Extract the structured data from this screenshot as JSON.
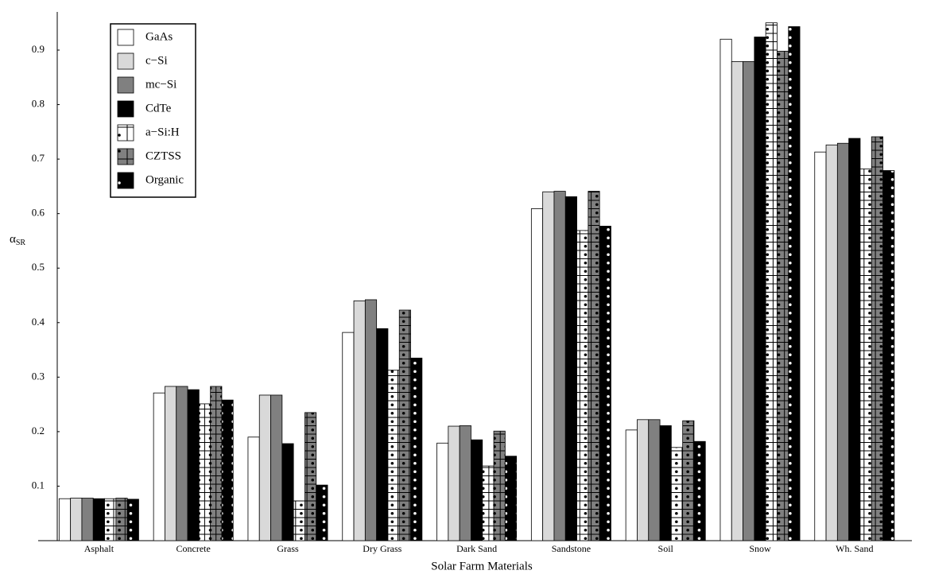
{
  "chart_data": {
    "type": "bar",
    "x_label": "Solar Farm Materials",
    "y_label": "α",
    "y_label_sub": "SR",
    "categories": [
      "Asphalt",
      "Concrete",
      "Grass",
      "Dry Grass",
      "Dark Sand",
      "Sandstone",
      "Soil",
      "Snow",
      "Wh. Sand"
    ],
    "series": [
      {
        "name": "GaAs",
        "color": "#ffffff",
        "values": [
          0.077,
          0.271,
          0.19,
          0.382,
          0.179,
          0.609,
          0.203,
          0.92,
          0.713
        ]
      },
      {
        "name": "c−Si",
        "color": "#d9d9d9",
        "values": [
          0.078,
          0.283,
          0.267,
          0.44,
          0.21,
          0.64,
          0.222,
          0.879,
          0.726
        ]
      },
      {
        "name": "mc−Si",
        "color": "#808080",
        "values": [
          0.078,
          0.283,
          0.267,
          0.442,
          0.211,
          0.641,
          0.222,
          0.879,
          0.729
        ]
      },
      {
        "name": "CdTe",
        "color": "#000000",
        "values": [
          0.077,
          0.277,
          0.178,
          0.389,
          0.185,
          0.631,
          0.211,
          0.924,
          0.738
        ]
      },
      {
        "name": "a−Si:H",
        "color": "#ffffff",
        "dot_color": "#000000",
        "values": [
          0.077,
          0.251,
          0.073,
          0.313,
          0.137,
          0.569,
          0.171,
          0.95,
          0.682
        ]
      },
      {
        "name": "CZTSS",
        "color": "#808080",
        "dot_color": "#000000",
        "values": [
          0.078,
          0.283,
          0.235,
          0.423,
          0.201,
          0.641,
          0.22,
          0.898,
          0.741
        ]
      },
      {
        "name": "Organic",
        "color": "#000000",
        "dot_color": "#ffffff",
        "values": [
          0.076,
          0.258,
          0.102,
          0.335,
          0.155,
          0.577,
          0.182,
          0.943,
          0.679
        ]
      }
    ],
    "ylim": [
      0,
      0.97
    ],
    "yticks": [
      0.1,
      0.2,
      0.3,
      0.4,
      0.5,
      0.6,
      0.7,
      0.8,
      0.9
    ],
    "grid": false,
    "legend": "upper left"
  }
}
